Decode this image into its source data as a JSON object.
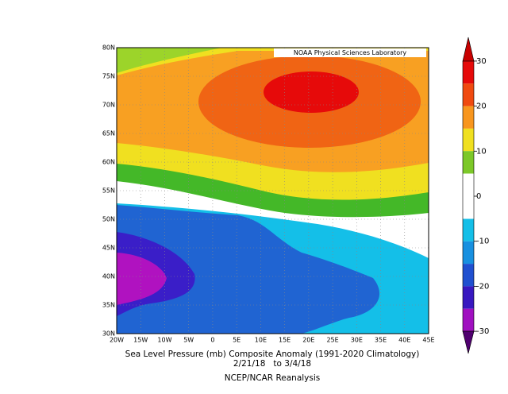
{
  "map": {
    "lat_labels": [
      "80N",
      "75N",
      "70N",
      "65N",
      "60N",
      "55N",
      "50N",
      "45N",
      "40N",
      "35N",
      "30N"
    ],
    "lon_labels": [
      "20W",
      "15W",
      "10W",
      "5W",
      "0",
      "5E",
      "10E",
      "15E",
      "20E",
      "25E",
      "30E",
      "35E",
      "40E",
      "45E"
    ],
    "credit": "NOAA Physical Sciences Laboratory"
  },
  "colorbar": {
    "ticks": [
      30,
      20,
      10,
      0,
      -10,
      -20,
      -30
    ]
  },
  "caption": {
    "title": "Sea Level Pressure (mb) Composite Anomaly (1991-2020 Climatology)",
    "dates": "2/21/18   to 3/4/18",
    "source": "NCEP/NCAR Reanalysis"
  }
}
